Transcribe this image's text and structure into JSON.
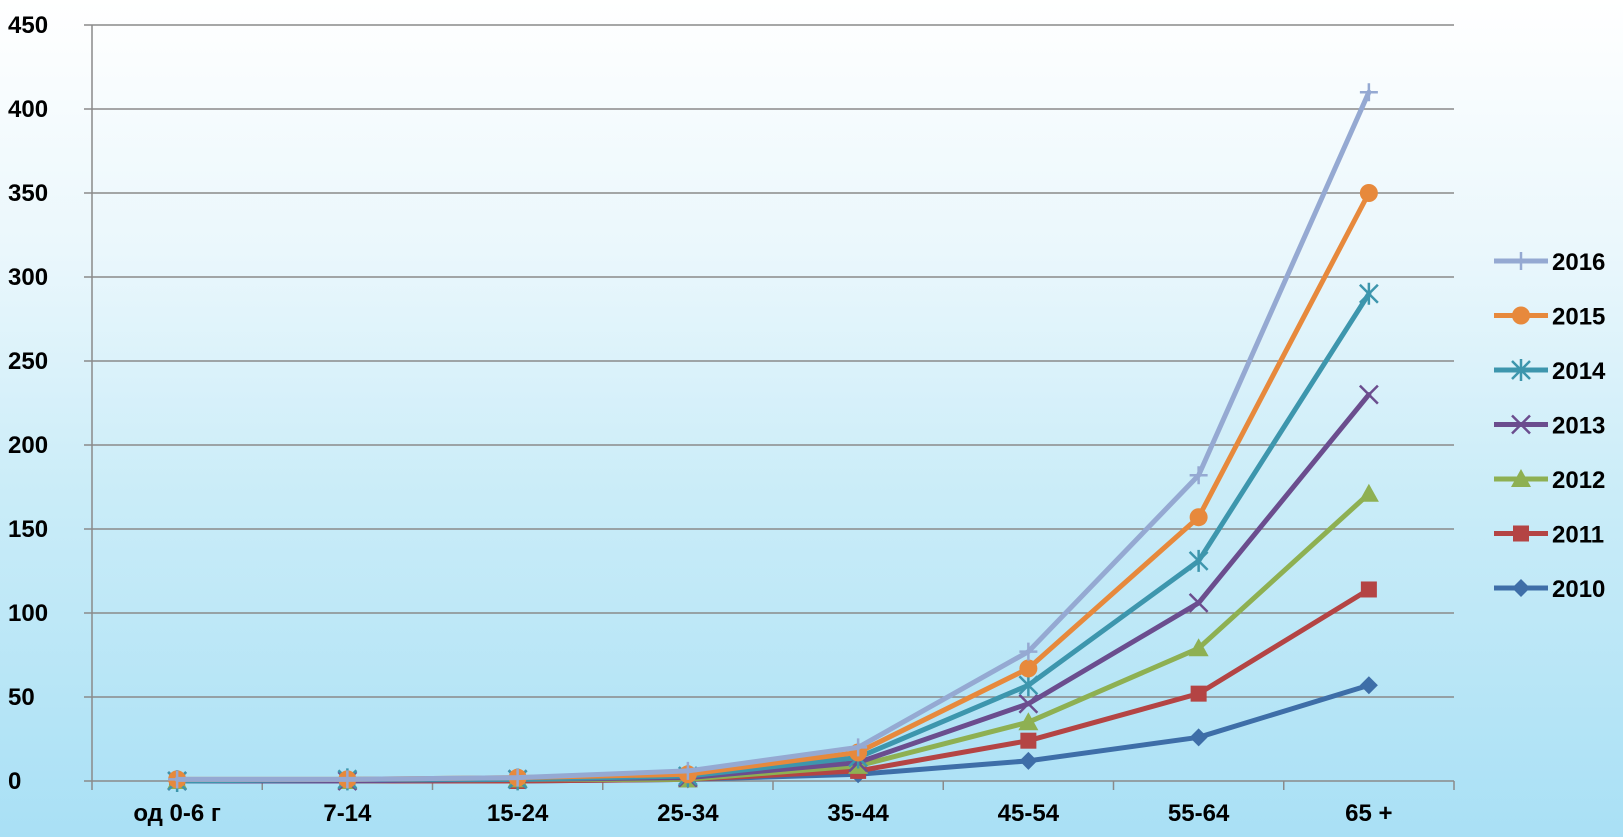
{
  "chart_data": {
    "type": "line",
    "title": "",
    "xlabel": "",
    "ylabel": "",
    "categories": [
      "од 0-6 г",
      "7-14",
      "15-24",
      "25-34",
      "35-44",
      "45-54",
      "55-64",
      "65 +"
    ],
    "ylim": [
      0,
      450
    ],
    "yticks": [
      0,
      50,
      100,
      150,
      200,
      250,
      300,
      350,
      400,
      450
    ],
    "grid": true,
    "legend_position": "right",
    "series": [
      {
        "name": "2016",
        "color": "#95a9d2",
        "marker": "plus",
        "values": [
          1,
          1,
          2,
          6,
          20,
          77,
          182,
          410
        ]
      },
      {
        "name": "2015",
        "color": "#e7893c",
        "marker": "circle",
        "values": [
          1,
          1,
          2,
          4,
          17,
          67,
          157,
          350
        ]
      },
      {
        "name": "2014",
        "color": "#3d96ad",
        "marker": "asterisk",
        "values": [
          0,
          1,
          1,
          3,
          14,
          57,
          131,
          290
        ]
      },
      {
        "name": "2013",
        "color": "#6b4d8e",
        "marker": "x",
        "values": [
          0,
          0,
          1,
          2,
          11,
          46,
          106,
          230
        ]
      },
      {
        "name": "2012",
        "color": "#8eb052",
        "marker": "triangle",
        "values": [
          0,
          0,
          1,
          1,
          9,
          35,
          79,
          171
        ]
      },
      {
        "name": "2011",
        "color": "#b44444",
        "marker": "square",
        "values": [
          0,
          0,
          0,
          1,
          6,
          24,
          52,
          114
        ]
      },
      {
        "name": "2010",
        "color": "#3e6ea8",
        "marker": "diamond",
        "values": [
          0,
          0,
          0,
          1,
          4,
          12,
          26,
          57
        ]
      }
    ]
  }
}
